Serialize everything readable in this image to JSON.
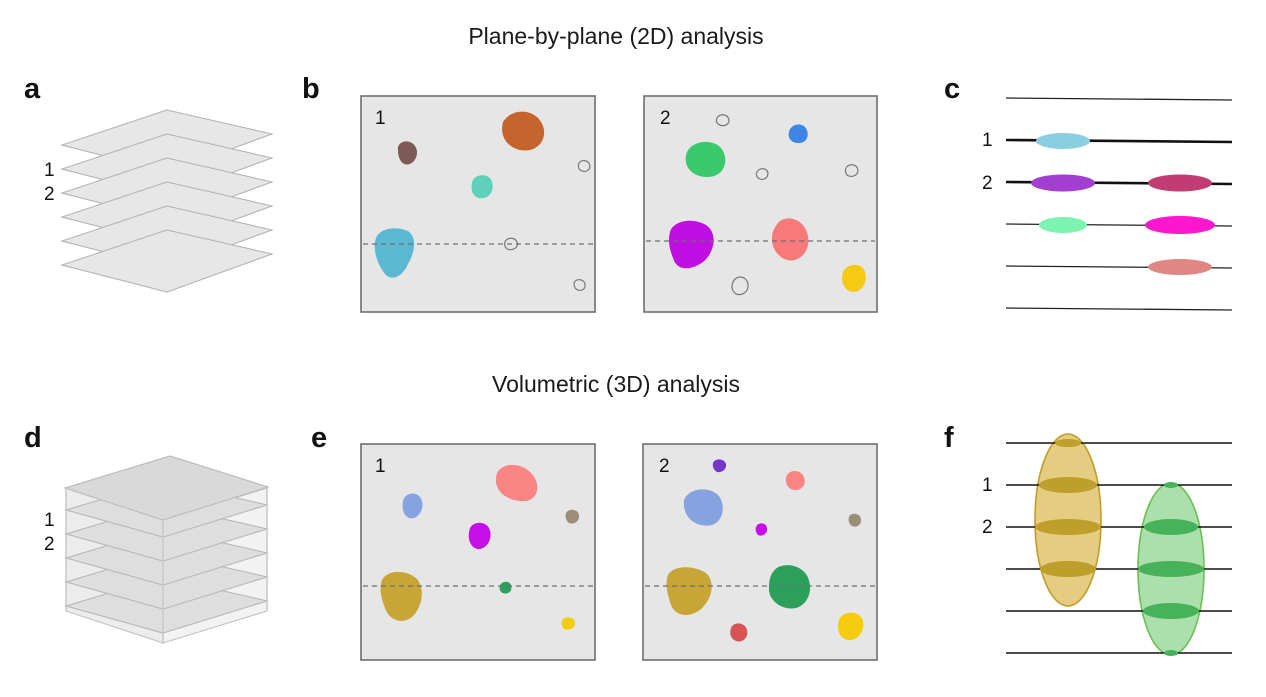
{
  "titles": {
    "top": "Plane-by-plane (2D) analysis",
    "bottom": "Volumetric (3D) analysis"
  },
  "panels": {
    "a": {
      "letter": "a",
      "label_1": "1",
      "label_2": "2"
    },
    "b": {
      "letter": "b",
      "box1_label": "1",
      "box2_label": "2"
    },
    "c": {
      "letter": "c",
      "label_1": "1",
      "label_2": "2"
    },
    "d": {
      "letter": "d",
      "label_1": "1",
      "label_2": "2"
    },
    "e": {
      "letter": "e",
      "box1_label": "1",
      "box2_label": "2"
    },
    "f": {
      "letter": "f",
      "label_1": "1",
      "label_2": "2"
    }
  },
  "colors": {
    "cell_brown": "#7d5a56",
    "cell_orange": "#c4652e",
    "cell_teal": "#5fd1b8",
    "cell_cyan": "#5ab8d2",
    "cell_green": "#3cc86d",
    "cell_blue": "#3d86e6",
    "cell_purple": "#c10ee3",
    "cell_salmon": "#f8797a",
    "cell_yellow": "#f6c913",
    "line_lightblue": "#8acfe0",
    "line_violet": "#a23fd0",
    "line_raspberry": "#c23b73",
    "line_mint": "#7df3b2",
    "line_magenta": "#ff16cf",
    "line_rose": "#e08685",
    "e_blue": "#86a3e0",
    "e_salmon": "#fb8585",
    "e_magenta": "#c60fe6",
    "e_taupe": "#9b8d77",
    "e_olive": "#c7a536",
    "e_green": "#2ca05b",
    "e_yellow": "#f5cc0e",
    "e_violet": "#7436c8",
    "e_red": "#d65454",
    "f_olive_fill": "#e0c66e",
    "f_olive_band": "#bf9f2c",
    "f_green_fill": "#a2dba3",
    "f_green_band": "#48b25a"
  }
}
